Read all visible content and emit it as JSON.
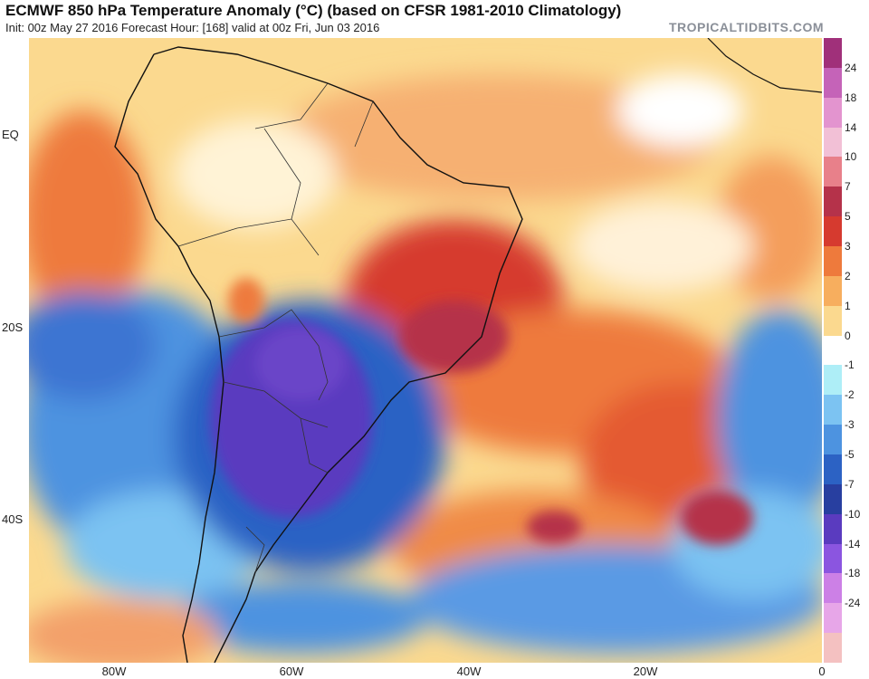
{
  "header": {
    "title": "ECMWF 850 hPa Temperature Anomaly (°C) (based on CFSR 1981-2010 Climatology)",
    "subtitle": "Init: 00z May 27 2016   Forecast Hour: [168]   valid at 00z Fri, Jun 03 2016",
    "brand": "TROPICALTIDBITS.COM"
  },
  "axes": {
    "lat_labels": [
      "EQ",
      "20S",
      "40S"
    ],
    "lon_labels": [
      "80W",
      "60W",
      "40W",
      "20W",
      "0"
    ]
  },
  "colorbar": {
    "labels": [
      "24",
      "18",
      "14",
      "10",
      "7",
      "5",
      "3",
      "2",
      "1",
      "0",
      "-1",
      "-2",
      "-3",
      "-5",
      "-7",
      "-10",
      "-14",
      "-18",
      "-24"
    ],
    "colors": [
      "#a0307a",
      "#c563b8",
      "#e394cf",
      "#f2c0d6",
      "#e8808a",
      "#b5324a",
      "#d63a2f",
      "#ee7a3c",
      "#f7ae5e",
      "#fbd98f",
      "#ffffff",
      "#aeeef7",
      "#7cc3f2",
      "#4d93e0",
      "#2c62c4",
      "#283fa0",
      "#5a3bbf",
      "#8b55e0",
      "#cc80e6",
      "#e7a6e8",
      "#f4c1c1"
    ]
  },
  "legend_icons": {
    "map": "map-icon"
  }
}
